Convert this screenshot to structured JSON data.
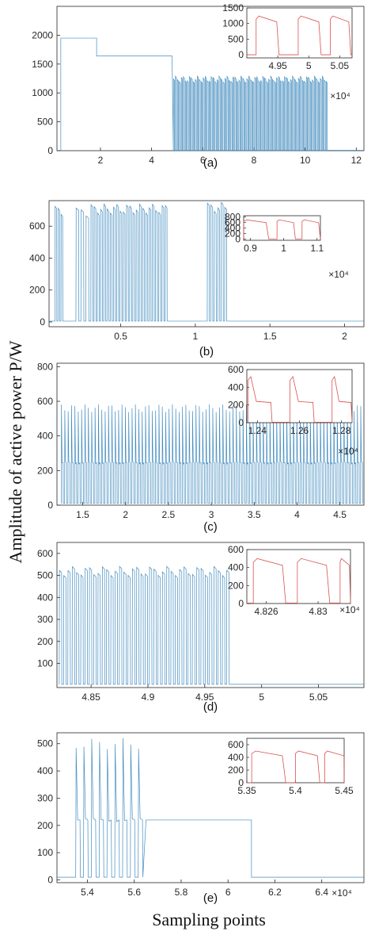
{
  "figure": {
    "ylabel": "Amplitude of active power P/W",
    "xlabel": "Sampling points"
  },
  "chart_data": [
    {
      "type": "line",
      "panel_label": "(a)",
      "exponent_label": "×10⁴",
      "xlim": [
        0.3,
        12.3
      ],
      "ylim": [
        0,
        2500
      ],
      "xticks": [
        2,
        4,
        6,
        8,
        10,
        12
      ],
      "yticks": [
        0,
        500,
        1000,
        1500,
        2000
      ],
      "series": [
        {
          "segments": [
            {
              "kind": "level",
              "x": [
                0.3,
                0.45
              ],
              "y": 5
            },
            {
              "kind": "level",
              "x": [
                0.45,
                1.85
              ],
              "y": 1950
            },
            {
              "kind": "level",
              "x": [
                1.85,
                4.8
              ],
              "y": 1640
            },
            {
              "kind": "pulses",
              "x": [
                4.85,
                10.9
              ],
              "low": 0,
              "high": 1240,
              "count": 78
            },
            {
              "kind": "level",
              "x": [
                10.9,
                12.3
              ],
              "y": 5
            }
          ]
        }
      ],
      "inset": {
        "xlim": [
          4.9,
          5.07
        ],
        "ylim": [
          -100,
          1500
        ],
        "xticks": [
          4.95,
          5,
          5.05
        ],
        "yticks": [
          0,
          500,
          1000,
          1500
        ],
        "exponent_label": "×10⁴",
        "pulses": [
          [
            4.915,
            4.952
          ],
          [
            4.983,
            5.02
          ],
          [
            5.035,
            5.068
          ]
        ],
        "low": 0,
        "high": 1240
      }
    },
    {
      "type": "line",
      "panel_label": "(b)",
      "exponent_label": "×10⁴",
      "xlim": [
        0.02,
        2.13
      ],
      "ylim": [
        -30,
        760
      ],
      "xticks": [
        0.5,
        1,
        1.5,
        2
      ],
      "yticks": [
        0,
        200,
        400,
        600
      ],
      "series": [
        {
          "segments": [
            {
              "kind": "level",
              "x": [
                0.02,
                0.06
              ],
              "y": 5
            },
            {
              "kind": "pulses",
              "x": [
                0.06,
                0.12
              ],
              "low": 5,
              "high": 700,
              "count": 3
            },
            {
              "kind": "level",
              "x": [
                0.12,
                0.2
              ],
              "y": 5
            },
            {
              "kind": "pulses",
              "x": [
                0.2,
                0.3
              ],
              "low": 5,
              "high": 690,
              "count": 3
            },
            {
              "kind": "pulses",
              "x": [
                0.3,
                0.82
              ],
              "low": 5,
              "high": 710,
              "count": 24
            },
            {
              "kind": "level",
              "x": [
                0.82,
                1.08
              ],
              "y": 5
            },
            {
              "kind": "pulses",
              "x": [
                1.08,
                1.22
              ],
              "low": 5,
              "high": 720,
              "count": 6
            },
            {
              "kind": "level",
              "x": [
                1.22,
                2.13
              ],
              "y": 5
            }
          ]
        }
      ],
      "inset": {
        "xlim": [
          0.88,
          1.11
        ],
        "ylim": [
          -50,
          850
        ],
        "xticks": [
          0.9,
          1,
          1.1
        ],
        "yticks": [
          0,
          200,
          400,
          600,
          800
        ],
        "exponent_label": "×10⁴",
        "pulses": [
          [
            0.88,
            0.955
          ],
          [
            0.98,
            1.035
          ],
          [
            1.055,
            1.11
          ]
        ],
        "low": 0,
        "high": 700
      }
    },
    {
      "type": "line",
      "panel_label": "(c)",
      "exponent_label": "×10⁴",
      "xlim": [
        1.2,
        4.78
      ],
      "ylim": [
        0,
        820
      ],
      "xticks": [
        1.5,
        2,
        2.5,
        3,
        3.5,
        4,
        4.5
      ],
      "yticks": [
        0,
        200,
        400,
        600,
        800
      ],
      "series": [
        {
          "segments": [
            {
              "kind": "pulses",
              "x": [
                1.25,
                4.78
              ],
              "low": 10,
              "high": 560,
              "mid": 245,
              "count": 90
            }
          ]
        }
      ],
      "inset": {
        "xlim": [
          1.235,
          1.285
        ],
        "ylim": [
          0,
          600
        ],
        "xticks": [
          1.24,
          1.26,
          1.28
        ],
        "yticks": [
          0,
          200,
          400,
          600
        ],
        "exponent_label": "×10⁴",
        "pulses": [
          [
            1.2355,
            1.247
          ],
          [
            1.2555,
            1.267
          ],
          [
            1.2755,
            1.285
          ]
        ],
        "low": 5,
        "high": 520,
        "mid": 240
      }
    },
    {
      "type": "line",
      "panel_label": "(d)",
      "exponent_label": "×10⁴",
      "xlim": [
        4.82,
        5.09
      ],
      "ylim": [
        -10,
        650
      ],
      "xticks": [
        4.85,
        4.9,
        4.95,
        5,
        5.05
      ],
      "yticks": [
        100,
        200,
        300,
        400,
        500,
        600
      ],
      "series": [
        {
          "segments": [
            {
              "kind": "pulses",
              "x": [
                4.822,
                4.973
              ],
              "low": 5,
              "high": 520,
              "count": 40
            },
            {
              "kind": "level",
              "x": [
                4.973,
                5.09
              ],
              "y": 5
            }
          ]
        }
      ],
      "inset": {
        "xlim": [
          4.8245,
          4.8325
        ],
        "ylim": [
          0,
          600
        ],
        "xticks": [
          4.826,
          4.83
        ],
        "yticks": [
          0,
          200,
          400,
          600
        ],
        "exponent_label": "×10⁴",
        "pulses": [
          [
            4.825,
            4.8275
          ],
          [
            4.8284,
            4.8309
          ],
          [
            4.8317,
            4.8325
          ]
        ],
        "low": 5,
        "high": 500
      }
    },
    {
      "type": "line",
      "panel_label": "(e)",
      "exponent_label": "×10⁴",
      "xlim": [
        5.27,
        6.58
      ],
      "ylim": [
        -10,
        540
      ],
      "xticks": [
        5.4,
        5.6,
        5.8,
        6,
        6.2,
        6.4
      ],
      "yticks": [
        0,
        100,
        200,
        300,
        400,
        500
      ],
      "series": [
        {
          "segments": [
            {
              "kind": "level",
              "x": [
                5.27,
                5.35
              ],
              "y": 10
            },
            {
              "kind": "pulses",
              "x": [
                5.35,
                5.65
              ],
              "low": 10,
              "high": 500,
              "mid": 220,
              "count": 9
            },
            {
              "kind": "level",
              "x": [
                5.65,
                6.1
              ],
              "y": 220
            },
            {
              "kind": "level",
              "x": [
                6.1,
                6.58
              ],
              "y": 10
            }
          ]
        }
      ],
      "inset": {
        "xlim": [
          5.35,
          5.45
        ],
        "ylim": [
          0,
          700
        ],
        "xticks": [
          5.35,
          5.4,
          5.45
        ],
        "yticks": [
          0,
          200,
          400,
          600
        ],
        "exponent_label": "×10⁴",
        "pulses": [
          [
            5.355,
            5.39
          ],
          [
            5.4,
            5.425
          ],
          [
            5.43,
            5.452
          ]
        ],
        "low": 0,
        "high": 500
      }
    }
  ]
}
